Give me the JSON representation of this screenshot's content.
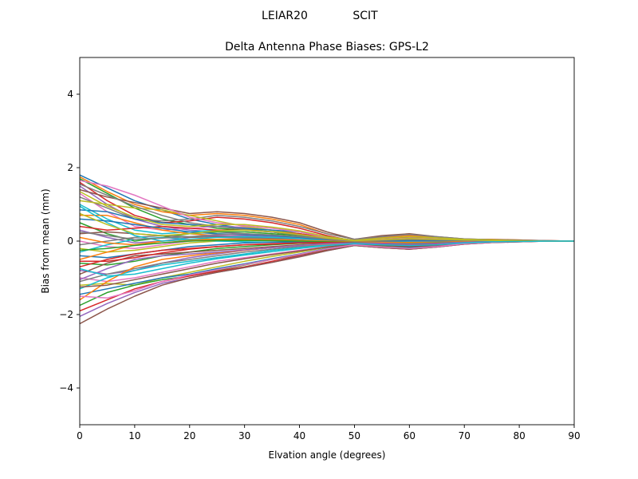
{
  "figure": {
    "suptitle_left": "LEIAR20",
    "suptitle_right": "SCIT"
  },
  "chart_data": {
    "type": "line",
    "title": "Delta Antenna Phase Biases: GPS-L2",
    "xlabel": "Elvation angle (degrees)",
    "ylabel": "Bias from mean (mm)",
    "xlim": [
      0,
      90
    ],
    "ylim": [
      -5,
      5
    ],
    "xticks": [
      0,
      10,
      20,
      30,
      40,
      50,
      60,
      70,
      80,
      90
    ],
    "yticks": [
      -4,
      -2,
      0,
      2,
      4
    ],
    "xtick_labels": [
      "0",
      "10",
      "20",
      "30",
      "40",
      "50",
      "60",
      "70",
      "80",
      "90"
    ],
    "ytick_labels": [
      "−4",
      "−2",
      "0",
      "2",
      "4"
    ],
    "grid": false,
    "legend": "none",
    "x": [
      0,
      5,
      10,
      15,
      20,
      25,
      30,
      35,
      40,
      45,
      50,
      55,
      60,
      65,
      70,
      75,
      80,
      85,
      90
    ],
    "colors": [
      "#1f77b4",
      "#ff7f0e",
      "#2ca02c",
      "#d62728",
      "#9467bd",
      "#8c564b",
      "#e377c2",
      "#7f7f7f",
      "#bcbd22",
      "#17becf"
    ],
    "series": [
      {
        "values": [
          1.8,
          1.45,
          1.1,
          0.85,
          0.6,
          0.45,
          0.35,
          0.25,
          0.15,
          0.05,
          -0.05,
          -0.1,
          -0.12,
          -0.1,
          -0.05,
          0.0,
          0.0,
          0.0,
          0.0
        ]
      },
      {
        "values": [
          1.75,
          1.35,
          1.0,
          0.8,
          0.7,
          0.75,
          0.7,
          0.6,
          0.45,
          0.2,
          0.05,
          0.1,
          0.15,
          0.1,
          0.05,
          0.05,
          0.03,
          0.01,
          0.0
        ]
      },
      {
        "values": [
          1.7,
          1.3,
          0.9,
          0.6,
          0.45,
          0.35,
          0.3,
          0.25,
          0.15,
          0.05,
          -0.05,
          -0.05,
          -0.08,
          -0.06,
          -0.03,
          0.0,
          0.0,
          0.0,
          0.0
        ]
      },
      {
        "values": [
          1.6,
          1.1,
          0.7,
          0.5,
          0.55,
          0.65,
          0.6,
          0.5,
          0.35,
          0.15,
          0.0,
          0.05,
          0.1,
          0.08,
          0.04,
          0.03,
          0.02,
          0.01,
          0.0
        ]
      },
      {
        "values": [
          1.5,
          1.0,
          0.6,
          0.4,
          0.3,
          0.25,
          0.2,
          0.15,
          0.1,
          0.02,
          -0.05,
          -0.1,
          -0.12,
          -0.1,
          -0.05,
          -0.02,
          0.0,
          0.0,
          0.0
        ]
      },
      {
        "values": [
          1.4,
          1.2,
          1.05,
          0.9,
          0.75,
          0.8,
          0.75,
          0.65,
          0.5,
          0.25,
          0.05,
          0.15,
          0.2,
          0.12,
          0.06,
          0.04,
          0.03,
          0.01,
          0.0
        ]
      },
      {
        "values": [
          1.3,
          0.8,
          0.4,
          0.3,
          0.35,
          0.4,
          0.38,
          0.3,
          0.2,
          0.1,
          0.0,
          0.02,
          0.05,
          0.04,
          0.02,
          0.01,
          0.0,
          0.0,
          0.0
        ]
      },
      {
        "values": [
          1.2,
          0.9,
          0.6,
          0.55,
          0.6,
          0.7,
          0.65,
          0.55,
          0.4,
          0.2,
          0.05,
          0.12,
          0.18,
          0.12,
          0.06,
          0.04,
          0.02,
          0.01,
          0.0
        ]
      },
      {
        "values": [
          1.1,
          1.0,
          0.9,
          0.85,
          0.7,
          0.55,
          0.4,
          0.3,
          0.2,
          0.1,
          0.0,
          0.0,
          -0.02,
          -0.02,
          -0.01,
          0.0,
          0.0,
          0.0,
          0.0
        ]
      },
      {
        "values": [
          1.0,
          0.6,
          0.3,
          0.2,
          0.25,
          0.3,
          0.3,
          0.25,
          0.18,
          0.08,
          0.0,
          0.02,
          0.04,
          0.03,
          0.02,
          0.01,
          0.0,
          0.0,
          0.0
        ]
      },
      {
        "values": [
          0.85,
          0.8,
          0.6,
          0.5,
          0.45,
          0.4,
          0.35,
          0.3,
          0.25,
          0.12,
          0.02,
          0.05,
          0.08,
          0.06,
          0.03,
          0.02,
          0.01,
          0.0,
          0.0
        ]
      },
      {
        "values": [
          0.7,
          0.7,
          0.5,
          0.3,
          0.2,
          0.15,
          0.12,
          0.1,
          0.05,
          0.0,
          -0.05,
          -0.08,
          -0.1,
          -0.08,
          -0.04,
          -0.02,
          0.0,
          0.0,
          0.0
        ]
      },
      {
        "values": [
          0.5,
          0.2,
          0.0,
          0.1,
          0.2,
          0.25,
          0.25,
          0.2,
          0.15,
          0.05,
          0.0,
          0.03,
          0.06,
          0.04,
          0.02,
          0.01,
          0.0,
          0.0,
          0.0
        ]
      },
      {
        "values": [
          0.4,
          0.3,
          0.35,
          0.4,
          0.35,
          0.3,
          0.3,
          0.25,
          0.2,
          0.1,
          0.02,
          0.05,
          0.07,
          0.05,
          0.03,
          0.02,
          0.01,
          0.0,
          0.0
        ]
      },
      {
        "values": [
          0.3,
          0.1,
          -0.05,
          0.0,
          0.1,
          0.15,
          0.15,
          0.12,
          0.08,
          0.03,
          -0.02,
          -0.02,
          -0.03,
          -0.02,
          -0.01,
          0.0,
          0.0,
          0.0,
          0.0
        ]
      },
      {
        "values": [
          0.2,
          0.25,
          0.2,
          0.15,
          0.1,
          0.12,
          0.1,
          0.08,
          0.05,
          0.02,
          -0.02,
          -0.05,
          -0.06,
          -0.05,
          -0.02,
          -0.01,
          0.0,
          0.0,
          0.0
        ]
      },
      {
        "values": [
          0.0,
          -0.15,
          -0.2,
          -0.1,
          0.0,
          0.05,
          0.06,
          0.05,
          0.04,
          0.0,
          -0.03,
          -0.05,
          -0.06,
          -0.05,
          -0.02,
          -0.01,
          0.0,
          0.0,
          0.0
        ]
      },
      {
        "values": [
          -0.1,
          0.0,
          0.1,
          0.15,
          0.12,
          0.1,
          0.08,
          0.06,
          0.03,
          0.0,
          -0.03,
          -0.04,
          -0.05,
          -0.04,
          -0.02,
          -0.01,
          0.0,
          0.0,
          0.0
        ]
      },
      {
        "values": [
          -0.2,
          -0.3,
          -0.25,
          -0.15,
          -0.05,
          0.0,
          0.02,
          0.02,
          0.0,
          -0.02,
          -0.05,
          -0.08,
          -0.1,
          -0.08,
          -0.04,
          -0.02,
          0.0,
          0.0,
          0.0
        ]
      },
      {
        "values": [
          -0.3,
          -0.1,
          0.05,
          0.1,
          0.05,
          0.0,
          -0.02,
          -0.03,
          -0.03,
          -0.05,
          -0.06,
          -0.08,
          -0.1,
          -0.08,
          -0.04,
          -0.02,
          -0.01,
          0.0,
          0.0
        ]
      },
      {
        "values": [
          -0.4,
          -0.45,
          -0.35,
          -0.25,
          -0.15,
          -0.1,
          -0.05,
          -0.03,
          -0.02,
          -0.03,
          -0.05,
          -0.08,
          -0.1,
          -0.08,
          -0.04,
          -0.02,
          -0.01,
          0.0,
          0.0
        ]
      },
      {
        "values": [
          -0.5,
          -0.3,
          -0.1,
          0.0,
          0.05,
          0.05,
          0.03,
          0.02,
          0.0,
          -0.02,
          -0.04,
          -0.05,
          -0.06,
          -0.05,
          -0.02,
          -0.01,
          0.0,
          0.0,
          0.0
        ]
      },
      {
        "values": [
          -0.6,
          -0.65,
          -0.55,
          -0.4,
          -0.3,
          -0.2,
          -0.15,
          -0.1,
          -0.06,
          -0.04,
          -0.05,
          -0.1,
          -0.13,
          -0.1,
          -0.05,
          -0.02,
          -0.01,
          0.0,
          0.0
        ]
      },
      {
        "values": [
          -0.7,
          -0.5,
          -0.35,
          -0.25,
          -0.2,
          -0.15,
          -0.1,
          -0.08,
          -0.05,
          -0.04,
          -0.05,
          -0.08,
          -0.1,
          -0.08,
          -0.04,
          -0.02,
          -0.01,
          0.0,
          0.0
        ]
      },
      {
        "values": [
          -0.8,
          -0.9,
          -0.8,
          -0.6,
          -0.45,
          -0.35,
          -0.25,
          -0.18,
          -0.12,
          -0.08,
          -0.06,
          -0.1,
          -0.12,
          -0.1,
          -0.05,
          -0.02,
          -0.01,
          0.0,
          0.0
        ]
      },
      {
        "values": [
          -0.9,
          -0.6,
          -0.4,
          -0.35,
          -0.3,
          -0.25,
          -0.2,
          -0.15,
          -0.1,
          -0.06,
          -0.05,
          -0.06,
          -0.08,
          -0.06,
          -0.03,
          -0.01,
          0.0,
          0.0,
          0.0
        ]
      },
      {
        "values": [
          -1.0,
          -1.1,
          -1.0,
          -0.85,
          -0.7,
          -0.55,
          -0.45,
          -0.35,
          -0.25,
          -0.15,
          -0.08,
          -0.12,
          -0.15,
          -0.12,
          -0.06,
          -0.03,
          -0.01,
          0.0,
          0.0
        ]
      },
      {
        "values": [
          -1.1,
          -0.9,
          -0.75,
          -0.6,
          -0.5,
          -0.4,
          -0.3,
          -0.22,
          -0.15,
          -0.1,
          -0.06,
          -0.08,
          -0.1,
          -0.08,
          -0.04,
          -0.02,
          -0.01,
          0.0,
          0.0
        ]
      },
      {
        "values": [
          -1.2,
          -1.15,
          -1.2,
          -1.0,
          -0.85,
          -0.7,
          -0.55,
          -0.42,
          -0.3,
          -0.17,
          -0.08,
          -0.15,
          -0.2,
          -0.15,
          -0.07,
          -0.03,
          -0.01,
          0.0,
          0.0
        ]
      },
      {
        "values": [
          -1.3,
          -1.0,
          -0.8,
          -0.65,
          -0.55,
          -0.45,
          -0.35,
          -0.25,
          -0.18,
          -0.1,
          -0.06,
          -0.08,
          -0.1,
          -0.08,
          -0.04,
          -0.02,
          -0.01,
          0.0,
          0.0
        ]
      },
      {
        "values": [
          -1.45,
          -1.3,
          -1.15,
          -1.0,
          -0.9,
          -0.75,
          -0.62,
          -0.48,
          -0.35,
          -0.2,
          -0.1,
          -0.15,
          -0.18,
          -0.14,
          -0.07,
          -0.03,
          -0.01,
          0.0,
          0.0
        ]
      },
      {
        "values": [
          -1.6,
          -1.1,
          -0.7,
          -0.5,
          -0.4,
          -0.32,
          -0.25,
          -0.18,
          -0.12,
          -0.08,
          -0.05,
          -0.06,
          -0.08,
          -0.06,
          -0.03,
          -0.01,
          0.0,
          0.0,
          0.0
        ]
      },
      {
        "values": [
          -1.75,
          -1.4,
          -1.2,
          -1.05,
          -0.95,
          -0.8,
          -0.65,
          -0.5,
          -0.38,
          -0.22,
          -0.1,
          -0.15,
          -0.2,
          -0.15,
          -0.07,
          -0.03,
          -0.01,
          0.0,
          0.0
        ]
      },
      {
        "values": [
          -1.9,
          -1.6,
          -1.3,
          -1.1,
          -0.95,
          -0.82,
          -0.7,
          -0.55,
          -0.4,
          -0.25,
          -0.12,
          -0.18,
          -0.22,
          -0.16,
          -0.08,
          -0.04,
          -0.02,
          0.0,
          0.0
        ]
      },
      {
        "values": [
          -2.05,
          -1.7,
          -1.4,
          -1.15,
          -1.0,
          -0.85,
          -0.72,
          -0.58,
          -0.42,
          -0.26,
          -0.12,
          -0.18,
          -0.22,
          -0.16,
          -0.08,
          -0.04,
          -0.02,
          0.0,
          0.0
        ]
      },
      {
        "values": [
          -2.25,
          -1.85,
          -1.5,
          -1.2,
          -1.0,
          -0.85,
          -0.72,
          -0.58,
          -0.43,
          -0.26,
          -0.12,
          -0.18,
          -0.22,
          -0.16,
          -0.08,
          -0.04,
          -0.02,
          0.0,
          0.0
        ]
      },
      {
        "values": [
          1.65,
          1.5,
          1.25,
          0.95,
          0.65,
          0.5,
          0.42,
          0.35,
          0.25,
          0.1,
          0.02,
          0.05,
          0.08,
          0.06,
          0.03,
          0.02,
          0.01,
          0.0,
          0.0
        ]
      },
      {
        "values": [
          1.55,
          1.25,
          0.95,
          0.7,
          0.5,
          0.4,
          0.32,
          0.25,
          0.16,
          0.06,
          -0.02,
          0.0,
          0.02,
          0.02,
          0.01,
          0.0,
          0.0,
          0.0,
          0.0
        ]
      },
      {
        "values": [
          1.35,
          0.95,
          0.65,
          0.45,
          0.4,
          0.45,
          0.45,
          0.38,
          0.28,
          0.12,
          0.02,
          0.08,
          0.12,
          0.09,
          0.05,
          0.03,
          0.01,
          0.0,
          0.0
        ]
      },
      {
        "values": [
          0.95,
          0.5,
          0.15,
          0.0,
          0.05,
          0.1,
          0.12,
          0.1,
          0.07,
          0.02,
          -0.02,
          -0.01,
          0.0,
          0.0,
          0.0,
          0.0,
          0.0,
          0.0,
          0.0
        ]
      },
      {
        "values": [
          0.6,
          0.55,
          0.45,
          0.35,
          0.25,
          0.2,
          0.18,
          0.15,
          0.1,
          0.04,
          -0.01,
          0.0,
          0.01,
          0.01,
          0.0,
          0.0,
          0.0,
          0.0,
          0.0
        ]
      },
      {
        "values": [
          0.1,
          -0.05,
          -0.1,
          -0.05,
          0.02,
          0.05,
          0.05,
          0.04,
          0.02,
          0.0,
          -0.02,
          -0.03,
          -0.04,
          -0.03,
          -0.01,
          0.0,
          0.0,
          0.0,
          0.0
        ]
      },
      {
        "values": [
          -0.25,
          -0.2,
          -0.12,
          -0.05,
          0.0,
          0.02,
          0.02,
          0.01,
          0.0,
          -0.02,
          -0.04,
          -0.06,
          -0.07,
          -0.05,
          -0.03,
          -0.01,
          0.0,
          0.0,
          0.0
        ]
      },
      {
        "values": [
          -0.55,
          -0.55,
          -0.45,
          -0.32,
          -0.22,
          -0.15,
          -0.1,
          -0.07,
          -0.05,
          -0.04,
          -0.05,
          -0.08,
          -0.1,
          -0.08,
          -0.04,
          -0.02,
          -0.01,
          0.0,
          0.0
        ]
      },
      {
        "values": [
          -1.05,
          -0.75,
          -0.5,
          -0.4,
          -0.35,
          -0.3,
          -0.24,
          -0.18,
          -0.12,
          -0.07,
          -0.05,
          -0.06,
          -0.08,
          -0.06,
          -0.03,
          -0.01,
          0.0,
          0.0,
          0.0
        ]
      },
      {
        "values": [
          -1.25,
          -1.2,
          -1.05,
          -0.9,
          -0.75,
          -0.6,
          -0.48,
          -0.37,
          -0.27,
          -0.16,
          -0.08,
          -0.12,
          -0.15,
          -0.12,
          -0.06,
          -0.03,
          -0.01,
          0.0,
          0.0
        ]
      },
      {
        "values": [
          -1.5,
          -1.55,
          -1.35,
          -1.1,
          -0.92,
          -0.78,
          -0.64,
          -0.5,
          -0.36,
          -0.21,
          -0.1,
          -0.16,
          -0.2,
          -0.15,
          -0.07,
          -0.03,
          -0.01,
          0.0,
          0.0
        ]
      },
      {
        "values": [
          0.25,
          0.15,
          0.05,
          0.08,
          0.12,
          0.18,
          0.2,
          0.17,
          0.12,
          0.05,
          0.0,
          0.02,
          0.04,
          0.03,
          0.02,
          0.01,
          0.0,
          0.0,
          0.0
        ]
      },
      {
        "values": [
          0.75,
          0.45,
          0.2,
          0.15,
          0.2,
          0.28,
          0.3,
          0.26,
          0.18,
          0.08,
          0.01,
          0.04,
          0.07,
          0.05,
          0.03,
          0.02,
          0.01,
          0.0,
          0.0
        ]
      },
      {
        "values": [
          -0.75,
          -0.95,
          -0.9,
          -0.75,
          -0.6,
          -0.48,
          -0.38,
          -0.29,
          -0.2,
          -0.12,
          -0.07,
          -0.1,
          -0.12,
          -0.1,
          -0.05,
          -0.02,
          -0.01,
          0.0,
          0.0
        ]
      }
    ]
  }
}
